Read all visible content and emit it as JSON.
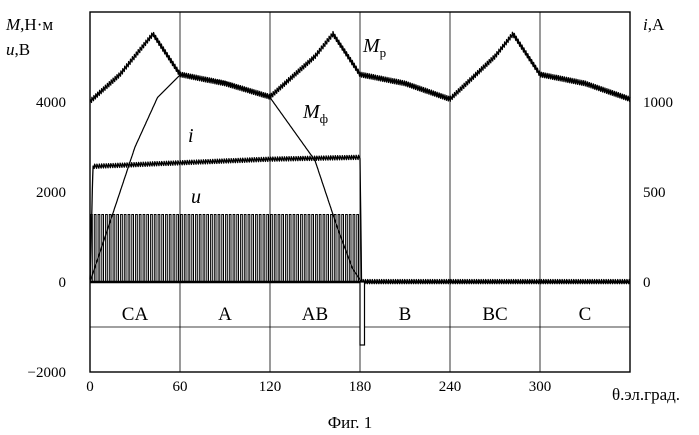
{
  "chart_data": {
    "type": "line",
    "caption": "Фиг. 1",
    "x_axis": {
      "label": "θ.эл.град.",
      "range": [
        0,
        360
      ],
      "ticks": [
        0,
        60,
        120,
        180,
        240,
        300
      ],
      "tick_labels": [
        "0",
        "60",
        "120",
        "180",
        "240",
        "300"
      ]
    },
    "y_axis_left": {
      "label_line1_var": "M",
      "label_line1_unit": ",Н·м",
      "label_line2_var": "u",
      "label_line2_unit": ",В",
      "range": [
        -2000,
        6000
      ],
      "ticks": [
        4000,
        2000,
        0,
        -2000
      ],
      "tick_labels": [
        "4000",
        "2000",
        "0",
        "−2000"
      ]
    },
    "y_axis_right": {
      "label_var": "i",
      "label_unit": ",А",
      "range": [
        -500,
        1500
      ],
      "ticks": [
        1000,
        500,
        0
      ],
      "tick_labels": [
        "1000",
        "500",
        "0"
      ]
    },
    "phases": [
      "CA",
      "A",
      "AB",
      "B",
      "BC",
      "C"
    ],
    "series": [
      {
        "name": "Mр",
        "label_main": "M",
        "label_sub": "р",
        "axis": "left",
        "x": [
          0,
          20,
          42,
          60,
          90,
          120,
          150,
          162,
          180,
          210,
          240,
          270,
          282,
          300,
          330,
          360
        ],
        "y": [
          4000,
          4600,
          5500,
          4600,
          4400,
          4100,
          5000,
          5500,
          4600,
          4400,
          4050,
          5000,
          5500,
          4600,
          4400,
          4050
        ]
      },
      {
        "name": "Mф",
        "label_main": "M",
        "label_sub": "ф",
        "axis": "left",
        "x": [
          0,
          15,
          30,
          45,
          60,
          90,
          120,
          150,
          165,
          175,
          181
        ],
        "y": [
          0,
          1500,
          3000,
          4100,
          4600,
          4450,
          4100,
          2700,
          1200,
          300,
          0
        ]
      },
      {
        "name": "i",
        "label_main": "i",
        "axis": "right",
        "x": [
          0,
          2,
          60,
          120,
          178,
          180,
          181,
          360
        ],
        "y": [
          0,
          640,
          660,
          680,
          690,
          690,
          0,
          0
        ]
      },
      {
        "name": "u",
        "label_main": "u",
        "axis": "left",
        "pwm": {
          "amplitude": 1500,
          "start": 0,
          "end": 180,
          "pulses": 72,
          "negative_spike": {
            "start": 180,
            "end": 183,
            "value": -1400
          }
        }
      }
    ],
    "grid": {
      "vertical_lines_at": [
        60,
        120,
        180,
        240,
        300
      ],
      "horizontal_lines_at": [
        0,
        -1000
      ]
    }
  }
}
